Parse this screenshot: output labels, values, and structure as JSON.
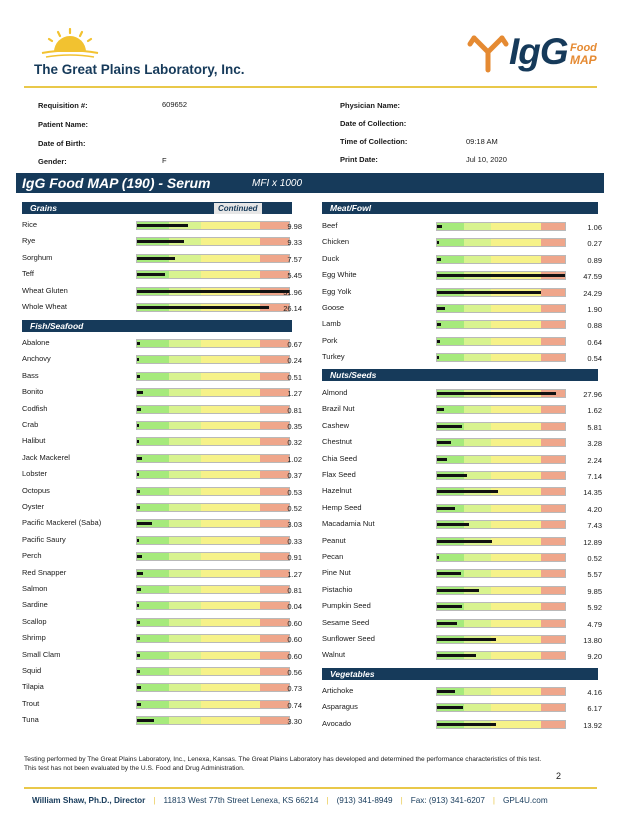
{
  "header": {
    "lab_name": "The Great Plains Laboratory, Inc.",
    "brand_main": "IgG",
    "brand_top": "Food",
    "brand_bottom": "MAP"
  },
  "patient_info": {
    "requisition_label": "Requisition #:",
    "requisition_value": "609652",
    "patient_name_label": "Patient Name:",
    "patient_name_value": "",
    "dob_label": "Date of Birth:",
    "dob_value": "",
    "gender_label": "Gender:",
    "gender_value": "F",
    "physician_label": "Physician Name:",
    "physician_value": "",
    "collection_date_label": "Date of Collection:",
    "collection_date_value": "",
    "collection_time_label": "Time of Collection:",
    "collection_time_value": "09:18 AM",
    "print_date_label": "Print Date:",
    "print_date_value": "Jul 10, 2020"
  },
  "report": {
    "title": "IgG Food MAP (190) - Serum",
    "unit": "MFI x 1000"
  },
  "bar_scale_max": 30,
  "colors": {
    "navy": "#163a5a",
    "accent_gold": "#e9c84a",
    "zone_green": "#a6ea7c",
    "zone_lime": "#d8f38f",
    "zone_yellow": "#f6f289",
    "zone_salmon": "#efa68b"
  },
  "sections": {
    "grains": {
      "name": "Grains",
      "continued": "Continued",
      "items": [
        {
          "name": "Rice",
          "value": "9.98"
        },
        {
          "name": "Rye",
          "value": "9.33"
        },
        {
          "name": "Sorghum",
          "value": "7.57"
        },
        {
          "name": "Teff",
          "value": "5.45"
        },
        {
          "name": "Wheat Gluten",
          "value": "31.96"
        },
        {
          "name": "Whole Wheat",
          "value": "26.14"
        }
      ]
    },
    "fish": {
      "name": "Fish/Seafood",
      "items": [
        {
          "name": "Abalone",
          "value": "0.67"
        },
        {
          "name": "Anchovy",
          "value": "0.24"
        },
        {
          "name": "Bass",
          "value": "0.51"
        },
        {
          "name": "Bonito",
          "value": "1.27"
        },
        {
          "name": "Codfish",
          "value": "0.81"
        },
        {
          "name": "Crab",
          "value": "0.35"
        },
        {
          "name": "Halibut",
          "value": "0.32"
        },
        {
          "name": "Jack Mackerel",
          "value": "1.02"
        },
        {
          "name": "Lobster",
          "value": "0.37"
        },
        {
          "name": "Octopus",
          "value": "0.53"
        },
        {
          "name": "Oyster",
          "value": "0.52"
        },
        {
          "name": "Pacific Mackerel (Saba)",
          "value": "3.03"
        },
        {
          "name": "Pacific Saury",
          "value": "0.33"
        },
        {
          "name": "Perch",
          "value": "0.91"
        },
        {
          "name": "Red Snapper",
          "value": "1.27"
        },
        {
          "name": "Salmon",
          "value": "0.81"
        },
        {
          "name": "Sardine",
          "value": "0.04"
        },
        {
          "name": "Scallop",
          "value": "0.60"
        },
        {
          "name": "Shrimp",
          "value": "0.60"
        },
        {
          "name": "Small Clam",
          "value": "0.60"
        },
        {
          "name": "Squid",
          "value": "0.56"
        },
        {
          "name": "Tilapia",
          "value": "0.73"
        },
        {
          "name": "Trout",
          "value": "0.74"
        },
        {
          "name": "Tuna",
          "value": "3.30"
        }
      ]
    },
    "meat": {
      "name": "Meat/Fowl",
      "items": [
        {
          "name": "Beef",
          "value": "1.06"
        },
        {
          "name": "Chicken",
          "value": "0.27"
        },
        {
          "name": "Duck",
          "value": "0.89"
        },
        {
          "name": "Egg White",
          "value": "47.59"
        },
        {
          "name": "Egg Yolk",
          "value": "24.29"
        },
        {
          "name": "Goose",
          "value": "1.90"
        },
        {
          "name": "Lamb",
          "value": "0.88"
        },
        {
          "name": "Pork",
          "value": "0.64"
        },
        {
          "name": "Turkey",
          "value": "0.54"
        }
      ]
    },
    "nuts": {
      "name": "Nuts/Seeds",
      "items": [
        {
          "name": "Almond",
          "value": "27.96"
        },
        {
          "name": "Brazil Nut",
          "value": "1.62"
        },
        {
          "name": "Cashew",
          "value": "5.81"
        },
        {
          "name": "Chestnut",
          "value": "3.28"
        },
        {
          "name": "Chia Seed",
          "value": "2.24"
        },
        {
          "name": "Flax Seed",
          "value": "7.14"
        },
        {
          "name": "Hazelnut",
          "value": "14.35"
        },
        {
          "name": "Hemp Seed",
          "value": "4.20"
        },
        {
          "name": "Macadamia Nut",
          "value": "7.43"
        },
        {
          "name": "Peanut",
          "value": "12.89"
        },
        {
          "name": "Pecan",
          "value": "0.52"
        },
        {
          "name": "Pine Nut",
          "value": "5.57"
        },
        {
          "name": "Pistachio",
          "value": "9.85"
        },
        {
          "name": "Pumpkin Seed",
          "value": "5.92"
        },
        {
          "name": "Sesame Seed",
          "value": "4.79"
        },
        {
          "name": "Sunflower Seed",
          "value": "13.80"
        },
        {
          "name": "Walnut",
          "value": "9.20"
        }
      ]
    },
    "veg": {
      "name": "Vegetables",
      "items": [
        {
          "name": "Artichoke",
          "value": "4.16"
        },
        {
          "name": "Asparagus",
          "value": "6.17"
        },
        {
          "name": "Avocado",
          "value": "13.92"
        }
      ]
    }
  },
  "footnote": "Testing performed by The Great Plains Laboratory, Inc., Lenexa, Kansas. The Great Plains Laboratory has developed and determined the performance characteristics of this test. This test has not been evaluated by the U.S. Food and Drug Administration.",
  "page_number": "2",
  "footer": {
    "director": "William Shaw, Ph.D., Director",
    "address": "11813 West 77th Street Lenexa, KS 66214",
    "phone": "(913) 341-8949",
    "fax": "Fax: (913) 341-6207",
    "website": "GPL4U.com"
  }
}
